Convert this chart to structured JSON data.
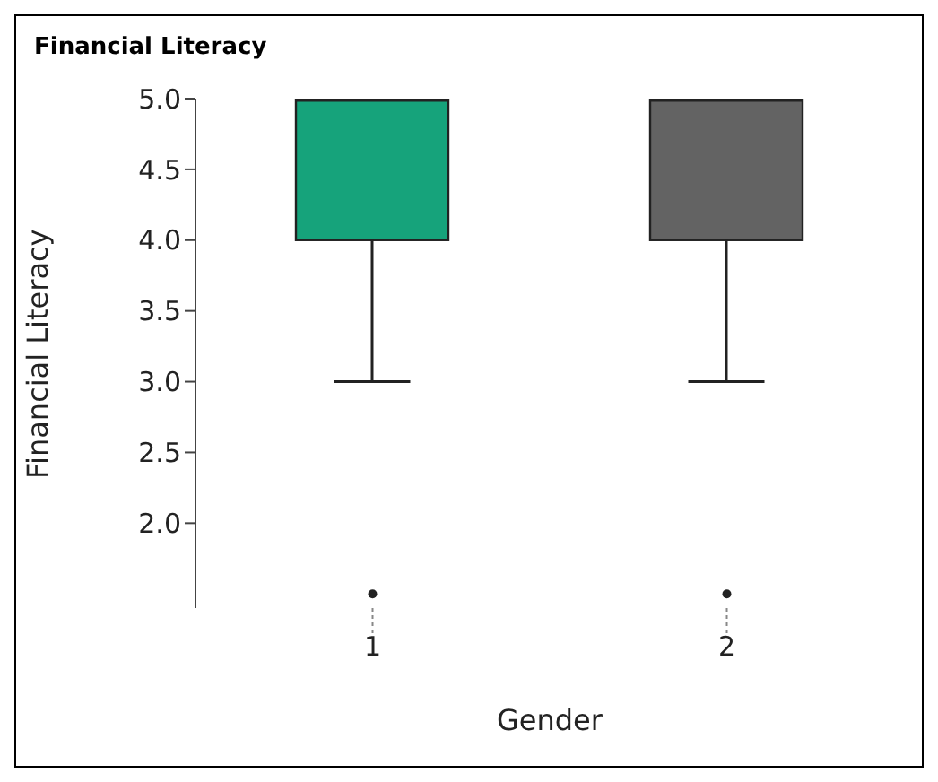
{
  "chart_data": {
    "type": "box",
    "title": "Financial Literacy",
    "xlabel": "Gender",
    "ylabel": "Financial Literacy",
    "categories": [
      "1",
      "2"
    ],
    "colors": [
      "#16a37b",
      "#636363"
    ],
    "boxes": [
      {
        "low": 3,
        "q1": 4,
        "median": 5,
        "q3": 5,
        "high": 5,
        "outliers": [
          1.5
        ]
      },
      {
        "low": 3,
        "q1": 4,
        "median": 5,
        "q3": 5,
        "high": 5,
        "outliers": [
          1.5
        ]
      }
    ],
    "ylim": [
      1.4,
      5
    ],
    "yticks": [
      {
        "value": 2,
        "label": "2.0"
      },
      {
        "value": 2.5,
        "label": "2.5"
      },
      {
        "value": 3,
        "label": "3.0"
      },
      {
        "value": 3.5,
        "label": "3.5"
      },
      {
        "value": 4,
        "label": "4.0"
      },
      {
        "value": 4.5,
        "label": "4.5"
      },
      {
        "value": 5,
        "label": "5.0"
      }
    ],
    "grid": false
  }
}
